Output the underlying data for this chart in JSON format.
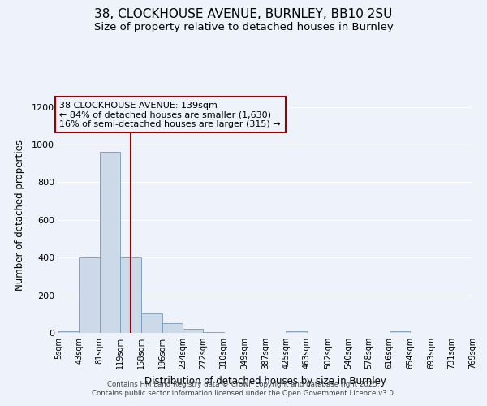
{
  "title": "38, CLOCKHOUSE AVENUE, BURNLEY, BB10 2SU",
  "subtitle": "Size of property relative to detached houses in Burnley",
  "xlabel": "Distribution of detached houses by size in Burnley",
  "ylabel": "Number of detached properties",
  "bar_color": "#ccd9e8",
  "bar_edge_color": "#7799bb",
  "background_color": "#eef2fa",
  "grid_color": "#ffffff",
  "vline_x": 139,
  "vline_color": "#990000",
  "annotation_box_color": "#990000",
  "annotation_text": "38 CLOCKHOUSE AVENUE: 139sqm\n← 84% of detached houses are smaller (1,630)\n16% of semi-detached houses are larger (315) →",
  "annotation_fontsize": 8,
  "bin_edges": [
    5,
    43,
    81,
    119,
    158,
    196,
    234,
    272,
    310,
    349,
    387,
    425,
    463,
    502,
    540,
    578,
    616,
    654,
    693,
    731,
    769
  ],
  "bin_heights": [
    10,
    400,
    960,
    400,
    105,
    50,
    20,
    5,
    0,
    0,
    0,
    8,
    0,
    0,
    0,
    0,
    8,
    0,
    0,
    0
  ],
  "ylim": [
    0,
    1250
  ],
  "yticks": [
    0,
    200,
    400,
    600,
    800,
    1000,
    1200
  ],
  "tick_labels": [
    "5sqm",
    "43sqm",
    "81sqm",
    "119sqm",
    "158sqm",
    "196sqm",
    "234sqm",
    "272sqm",
    "310sqm",
    "349sqm",
    "387sqm",
    "425sqm",
    "463sqm",
    "502sqm",
    "540sqm",
    "578sqm",
    "616sqm",
    "654sqm",
    "693sqm",
    "731sqm",
    "769sqm"
  ],
  "footnote1": "Contains HM Land Registry data © Crown copyright and database right 2025.",
  "footnote2": "Contains public sector information licensed under the Open Government Licence v3.0.",
  "title_fontsize": 11,
  "subtitle_fontsize": 9.5,
  "xlabel_fontsize": 8.5,
  "ylabel_fontsize": 8.5,
  "tick_fontsize": 7
}
